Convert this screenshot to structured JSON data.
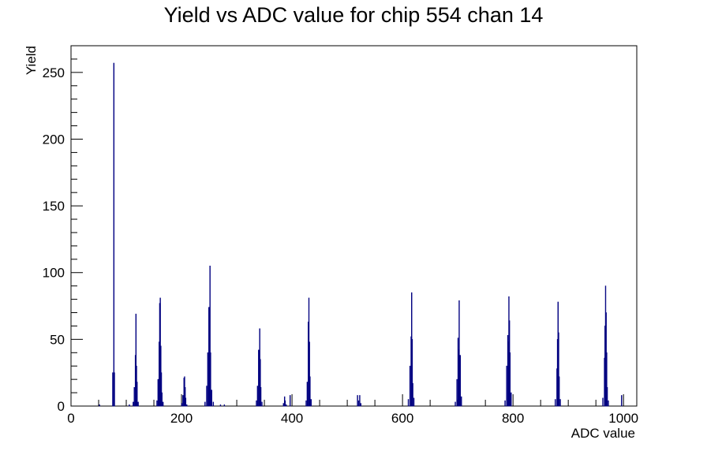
{
  "chart_data": {
    "type": "bar",
    "title": "Yield vs ADC value for chip 554 chan 14",
    "xlabel": "ADC value",
    "ylabel": "Yield",
    "xlim": [
      0,
      1024
    ],
    "ylim": [
      0,
      270
    ],
    "x_ticks": [
      0,
      200,
      400,
      600,
      800,
      1000
    ],
    "y_ticks": [
      0,
      50,
      100,
      150,
      200,
      250
    ],
    "grid": false,
    "bin_width": 1,
    "color": "#000080",
    "bins": [
      [
        51,
        1
      ],
      [
        75,
        25
      ],
      [
        77,
        257
      ],
      [
        78,
        25
      ],
      [
        105,
        1
      ],
      [
        112,
        3
      ],
      [
        114,
        14
      ],
      [
        116,
        38
      ],
      [
        117,
        69
      ],
      [
        118,
        30
      ],
      [
        119,
        18
      ],
      [
        121,
        3
      ],
      [
        155,
        4
      ],
      [
        157,
        20
      ],
      [
        159,
        48
      ],
      [
        160,
        77
      ],
      [
        161,
        81
      ],
      [
        162,
        45
      ],
      [
        163,
        25
      ],
      [
        164,
        10
      ],
      [
        166,
        3
      ],
      [
        200,
        2
      ],
      [
        202,
        8
      ],
      [
        204,
        21
      ],
      [
        205,
        22
      ],
      [
        206,
        14
      ],
      [
        207,
        6
      ],
      [
        209,
        1
      ],
      [
        242,
        3
      ],
      [
        245,
        15
      ],
      [
        247,
        40
      ],
      [
        249,
        74
      ],
      [
        250,
        60
      ],
      [
        251,
        105
      ],
      [
        252,
        40
      ],
      [
        254,
        12
      ],
      [
        257,
        3
      ],
      [
        270,
        1
      ],
      [
        277,
        1
      ],
      [
        335,
        4
      ],
      [
        337,
        15
      ],
      [
        339,
        42
      ],
      [
        341,
        58
      ],
      [
        342,
        35
      ],
      [
        343,
        14
      ],
      [
        345,
        3
      ],
      [
        384,
        2
      ],
      [
        386,
        7
      ],
      [
        387,
        4
      ],
      [
        389,
        1
      ],
      [
        396,
        8
      ],
      [
        425,
        4
      ],
      [
        427,
        18
      ],
      [
        429,
        63
      ],
      [
        430,
        81
      ],
      [
        431,
        48
      ],
      [
        432,
        22
      ],
      [
        434,
        5
      ],
      [
        518,
        8
      ],
      [
        520,
        4
      ],
      [
        522,
        8
      ],
      [
        524,
        2
      ],
      [
        610,
        5
      ],
      [
        613,
        30
      ],
      [
        615,
        52
      ],
      [
        616,
        85
      ],
      [
        617,
        50
      ],
      [
        618,
        17
      ],
      [
        620,
        6
      ],
      [
        695,
        3
      ],
      [
        698,
        20
      ],
      [
        700,
        51
      ],
      [
        701,
        42
      ],
      [
        702,
        79
      ],
      [
        703,
        38
      ],
      [
        704,
        38
      ],
      [
        706,
        7
      ],
      [
        785,
        4
      ],
      [
        788,
        30
      ],
      [
        790,
        53
      ],
      [
        791,
        48
      ],
      [
        792,
        82
      ],
      [
        793,
        64
      ],
      [
        794,
        40
      ],
      [
        796,
        10
      ],
      [
        876,
        5
      ],
      [
        879,
        28
      ],
      [
        880,
        50
      ],
      [
        881,
        78
      ],
      [
        882,
        55
      ],
      [
        883,
        22
      ],
      [
        885,
        5
      ],
      [
        962,
        6
      ],
      [
        965,
        36
      ],
      [
        966,
        60
      ],
      [
        967,
        90
      ],
      [
        968,
        70
      ],
      [
        969,
        40
      ],
      [
        970,
        14
      ],
      [
        972,
        4
      ],
      [
        996,
        8
      ]
    ]
  }
}
